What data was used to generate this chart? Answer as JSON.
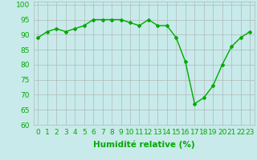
{
  "x": [
    0,
    1,
    2,
    3,
    4,
    5,
    6,
    7,
    8,
    9,
    10,
    11,
    12,
    13,
    14,
    15,
    16,
    17,
    18,
    19,
    20,
    21,
    22,
    23
  ],
  "y": [
    89,
    91,
    92,
    91,
    92,
    93,
    95,
    95,
    95,
    95,
    94,
    93,
    95,
    93,
    93,
    89,
    81,
    67,
    69,
    73,
    80,
    86,
    89,
    91
  ],
  "line_color": "#00aa00",
  "marker": "D",
  "marker_size": 2.0,
  "bg_color": "#c8eaea",
  "grid_color": "#b0b8b8",
  "xlabel": "Humidité relative (%)",
  "xlabel_color": "#00aa00",
  "xlim": [
    -0.5,
    23.5
  ],
  "ylim": [
    60,
    101
  ],
  "yticks": [
    60,
    65,
    70,
    75,
    80,
    85,
    90,
    95,
    100
  ],
  "xticks": [
    0,
    1,
    2,
    3,
    4,
    5,
    6,
    7,
    8,
    9,
    10,
    11,
    12,
    13,
    14,
    15,
    16,
    17,
    18,
    19,
    20,
    21,
    22,
    23
  ],
  "tick_color": "#00aa00",
  "tick_labelsize": 6.5,
  "xlabel_fontsize": 7.5,
  "linewidth": 1.0
}
